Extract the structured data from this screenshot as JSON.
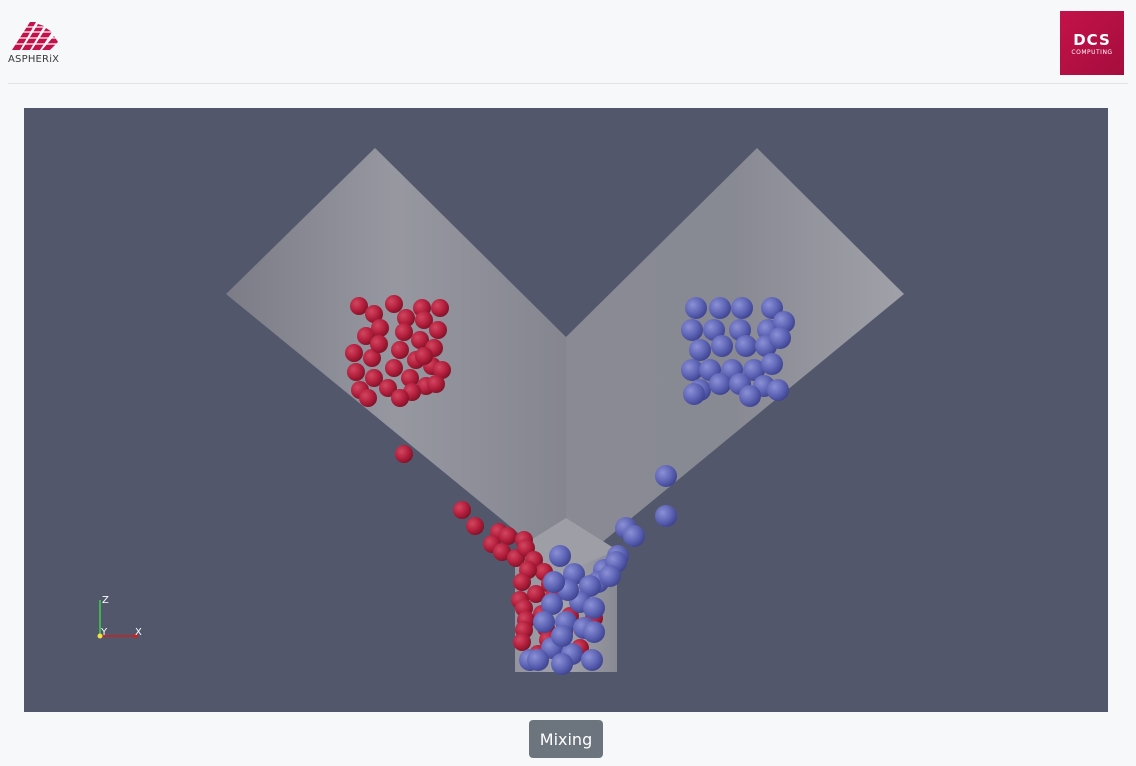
{
  "header": {
    "left_logo": {
      "icon": "aspherix-logo-icon",
      "text": "ASPHERiX",
      "color": "#c3124a"
    },
    "right_logo": {
      "icon": "dcs-computing-logo-icon",
      "text": "DCS",
      "subtext": "COMPUTING",
      "color": "#c3124a"
    }
  },
  "viewport": {
    "background": "#52576b",
    "geometry_color": "#8e8f98",
    "particle_colors": {
      "red": "#b21e3c",
      "blue": "#5d63b4"
    },
    "axes": {
      "z_label": "Z",
      "y_label": "Y",
      "x_label": "X"
    }
  },
  "controls": {
    "mix_button_label": "Mixing"
  }
}
